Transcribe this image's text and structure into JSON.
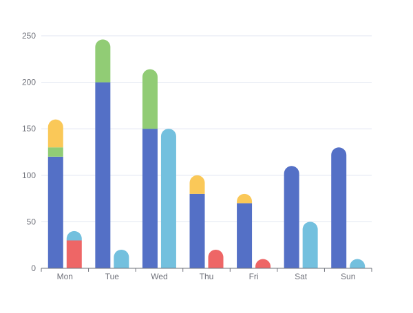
{
  "chart_data": {
    "type": "bar",
    "categories": [
      "Mon",
      "Tue",
      "Wed",
      "Thu",
      "Fri",
      "Sat",
      "Sun"
    ],
    "ylim": [
      0,
      250
    ],
    "yticks": [
      0,
      50,
      100,
      150,
      200,
      250
    ],
    "grid": true,
    "legend": "none",
    "stacks": [
      {
        "series": [
          {
            "color": "#5470c6",
            "values": [
              120,
              200,
              150,
              80,
              70,
              110,
              130
            ]
          },
          {
            "color": "#91cc75",
            "values": [
              10,
              46,
              64,
              0,
              0,
              0,
              0
            ]
          },
          {
            "color": "#fac858",
            "values": [
              30,
              0,
              0,
              20,
              10,
              0,
              0
            ]
          }
        ]
      },
      {
        "series": [
          {
            "color": "#ee6666",
            "values": [
              30,
              0,
              0,
              20,
              10,
              0,
              0
            ]
          },
          {
            "color": "#73c0de",
            "values": [
              10,
              20,
              150,
              0,
              0,
              50,
              10
            ]
          }
        ]
      }
    ]
  }
}
